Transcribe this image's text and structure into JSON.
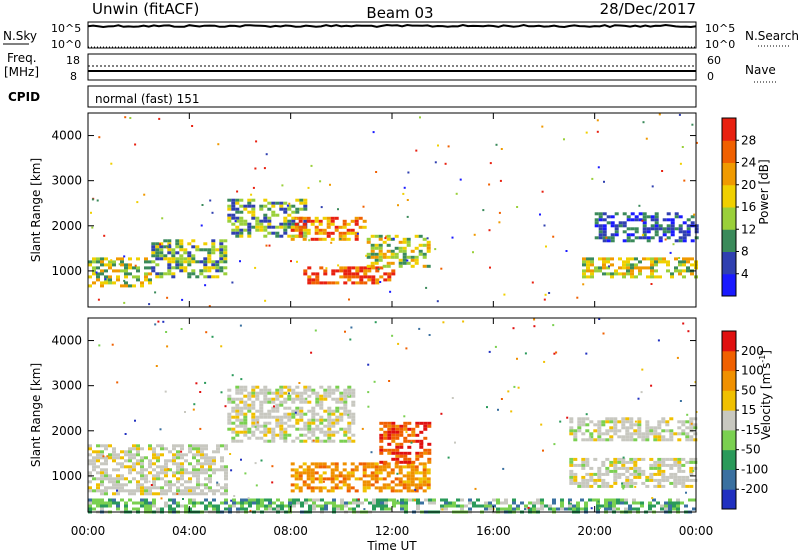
{
  "header": {
    "left": "Unwin (fitACF)",
    "center": "Beam 03",
    "right": "28/Dec/2017"
  },
  "nsky_panel": {
    "left_label": "N.Sky",
    "left_ticks": [
      "10^5",
      "10^0"
    ],
    "right_ticks": [
      "10^5",
      "10^0"
    ],
    "right_label": "N.Search"
  },
  "freq_panel": {
    "left_label_1": "Freq.",
    "left_label_2": "[MHz]",
    "left_ticks": [
      "18",
      "8"
    ],
    "right_ticks": [
      "60",
      "0"
    ],
    "right_label": "Nave"
  },
  "cpid_panel": {
    "left_label": "CPID",
    "text": "normal (fast) 151"
  },
  "x_axis": {
    "label": "Time UT",
    "ticks": [
      "00:00",
      "04:00",
      "08:00",
      "12:00",
      "16:00",
      "20:00",
      "00:00"
    ]
  },
  "chart_data": [
    {
      "type": "heatmap",
      "title": "",
      "ylabel": "Slant Range [km]",
      "yticks": [
        1000,
        2000,
        3000,
        4000
      ],
      "ylim": [
        200,
        4500
      ],
      "xlim": [
        0,
        24
      ],
      "colorbar": {
        "label": "Power [dB]",
        "ticks": [
          "4",
          "8",
          "12",
          "16",
          "20",
          "24",
          "28"
        ],
        "colors": [
          "#1a1aff",
          "#3040b0",
          "#3a8a5a",
          "#9ad03a",
          "#f0d000",
          "#f09a00",
          "#f06000",
          "#e82010"
        ]
      },
      "regions": [
        {
          "x": [
            0.0,
            2.5
          ],
          "y": [
            700,
            1300
          ],
          "level": "mid-high"
        },
        {
          "x": [
            2.5,
            5.5
          ],
          "y": [
            900,
            1700
          ],
          "level": "mid"
        },
        {
          "x": [
            5.5,
            8.5
          ],
          "y": [
            1800,
            2600
          ],
          "level": "mid"
        },
        {
          "x": [
            8.0,
            11.0
          ],
          "y": [
            1700,
            2200
          ],
          "level": "high"
        },
        {
          "x": [
            8.5,
            12.0
          ],
          "y": [
            750,
            1100
          ],
          "level": "very-high"
        },
        {
          "x": [
            11.0,
            13.5
          ],
          "y": [
            1100,
            1800
          ],
          "level": "mid-high"
        },
        {
          "x": [
            19.5,
            24.0
          ],
          "y": [
            900,
            1300
          ],
          "level": "mid-high"
        },
        {
          "x": [
            20.0,
            24.0
          ],
          "y": [
            1700,
            2300
          ],
          "level": "low"
        }
      ]
    },
    {
      "type": "heatmap",
      "title": "",
      "ylabel": "Slant Range [km]",
      "yticks": [
        1000,
        2000,
        3000,
        4000
      ],
      "ylim": [
        200,
        4500
      ],
      "xlim": [
        0,
        24
      ],
      "colorbar": {
        "label_main": "Velocity",
        "label_unit": "[m s",
        "label_exp": "-1",
        "label_close": "]",
        "ticks": [
          "200",
          "100",
          "50",
          "15",
          "-15",
          "-50",
          "-100",
          "-200"
        ],
        "colors": [
          "#2030c0",
          "#3a70a0",
          "#2a9a5a",
          "#7ad050",
          "#c8c8c0",
          "#f0c000",
          "#f09000",
          "#f06000",
          "#e01010"
        ]
      },
      "regions": [
        {
          "x": [
            0.0,
            5.5
          ],
          "y": [
            600,
            1700
          ],
          "velocity": "near-zero"
        },
        {
          "x": [
            5.5,
            10.5
          ],
          "y": [
            1800,
            3000
          ],
          "velocity": "near-zero"
        },
        {
          "x": [
            8.0,
            13.5
          ],
          "y": [
            700,
            1300
          ],
          "velocity": "negative"
        },
        {
          "x": [
            11.5,
            13.5
          ],
          "y": [
            1300,
            2200
          ],
          "velocity": "strongly-negative"
        },
        {
          "x": [
            19.0,
            24.0
          ],
          "y": [
            800,
            1400
          ],
          "velocity": "near-zero"
        },
        {
          "x": [
            19.0,
            24.0
          ],
          "y": [
            1800,
            2300
          ],
          "velocity": "near-zero"
        },
        {
          "x": [
            0.0,
            24.0
          ],
          "y": [
            200,
            500
          ],
          "velocity": "positive"
        }
      ]
    }
  ]
}
